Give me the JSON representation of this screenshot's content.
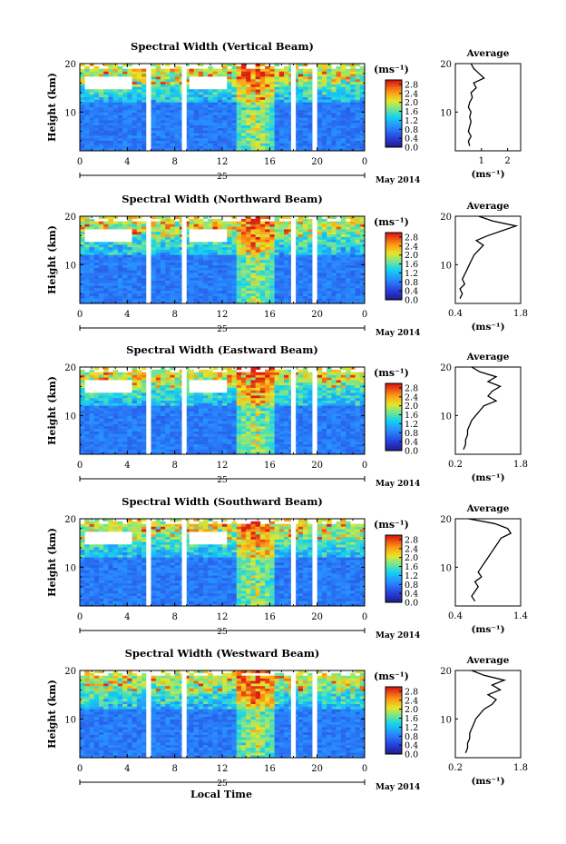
{
  "figure": {
    "x_axis_title": "Local Time",
    "date_label": "May 2014",
    "day_label": "25",
    "unit_label": "(ms⁻¹)",
    "avg_title": "Average",
    "height_label": "Height (km)"
  },
  "chart_data": [
    {
      "type": "heatmap",
      "title": "Spectral Width (Vertical Beam)",
      "xlabel": "Local Time",
      "ylabel": "Height (km)",
      "x_ticks": [
        "0",
        "4",
        "8",
        "12",
        "16",
        "20",
        "0"
      ],
      "y_ticks": [
        "10",
        "20"
      ],
      "xlim": [
        0,
        24
      ],
      "ylim": [
        2,
        20
      ],
      "colorbar": {
        "ticks": [
          "0.0",
          "0.4",
          "0.8",
          "1.2",
          "1.6",
          "2.0",
          "2.4",
          "2.8"
        ],
        "range": [
          0,
          3.0
        ]
      },
      "data_gaps_hours": [
        [
          5.6,
          6.0
        ],
        [
          8.6,
          9.0
        ],
        [
          17.8,
          18.2
        ],
        [
          19.6,
          20.0
        ]
      ],
      "profile": {
        "title": "Average",
        "xlabel": "(ms⁻¹)",
        "x_ticks": [
          "1",
          "2"
        ],
        "y_ticks": [
          "10",
          "20"
        ],
        "xlim": [
          0,
          2.5
        ],
        "heights": [
          3,
          4,
          5,
          6,
          7,
          8,
          9,
          10,
          11,
          12,
          13,
          14,
          15,
          16,
          17,
          18,
          19,
          20
        ],
        "values": [
          0.55,
          0.5,
          0.6,
          0.5,
          0.55,
          0.6,
          0.55,
          0.6,
          0.5,
          0.55,
          0.65,
          0.6,
          0.8,
          0.7,
          1.1,
          0.9,
          0.7,
          0.6
        ]
      }
    },
    {
      "type": "heatmap",
      "title": "Spectral Width (Northward Beam)",
      "xlabel": "Local Time",
      "ylabel": "Height (km)",
      "x_ticks": [
        "0",
        "4",
        "8",
        "12",
        "16",
        "20",
        "0"
      ],
      "y_ticks": [
        "10",
        "20"
      ],
      "xlim": [
        0,
        24
      ],
      "ylim": [
        2,
        20
      ],
      "colorbar": {
        "ticks": [
          "0.0",
          "0.4",
          "0.8",
          "1.2",
          "1.6",
          "2.0",
          "2.4",
          "2.8"
        ],
        "range": [
          0,
          3.0
        ]
      },
      "data_gaps_hours": [
        [
          5.6,
          6.0
        ],
        [
          8.6,
          9.0
        ],
        [
          17.8,
          18.2
        ],
        [
          19.6,
          20.0
        ]
      ],
      "profile": {
        "title": "Average",
        "xlabel": "(ms⁻¹)",
        "x_ticks": [
          "0.4",
          "1.8"
        ],
        "y_ticks": [
          "10",
          "20"
        ],
        "xlim": [
          0.4,
          1.8
        ],
        "heights": [
          3,
          4,
          5,
          6,
          7,
          8,
          9,
          10,
          11,
          12,
          13,
          14,
          15,
          16,
          17,
          18,
          19,
          20
        ],
        "values": [
          0.5,
          0.55,
          0.5,
          0.6,
          0.55,
          0.6,
          0.65,
          0.7,
          0.75,
          0.8,
          0.9,
          1.0,
          0.85,
          1.1,
          1.4,
          1.7,
          1.2,
          0.9
        ]
      }
    },
    {
      "type": "heatmap",
      "title": "Spectral Width (Eastward Beam)",
      "xlabel": "Local Time",
      "ylabel": "Height (km)",
      "x_ticks": [
        "0",
        "4",
        "8",
        "12",
        "16",
        "20",
        "0"
      ],
      "y_ticks": [
        "10",
        "20"
      ],
      "xlim": [
        0,
        24
      ],
      "ylim": [
        2,
        20
      ],
      "colorbar": {
        "ticks": [
          "0.0",
          "0.4",
          "0.8",
          "1.2",
          "1.6",
          "2.0",
          "2.4",
          "2.8"
        ],
        "range": [
          0,
          3.0
        ]
      },
      "data_gaps_hours": [
        [
          5.6,
          6.0
        ],
        [
          8.6,
          9.0
        ],
        [
          17.8,
          18.2
        ],
        [
          19.6,
          20.0
        ]
      ],
      "profile": {
        "title": "Average",
        "xlabel": "(ms⁻¹)",
        "x_ticks": [
          "0.2",
          "1.8"
        ],
        "y_ticks": [
          "10",
          "20"
        ],
        "xlim": [
          0.2,
          1.8
        ],
        "heights": [
          3,
          4,
          5,
          6,
          7,
          8,
          9,
          10,
          11,
          12,
          13,
          14,
          15,
          16,
          17,
          18,
          19,
          20
        ],
        "values": [
          0.4,
          0.45,
          0.45,
          0.5,
          0.5,
          0.55,
          0.6,
          0.7,
          0.8,
          0.9,
          1.2,
          1.0,
          1.1,
          1.3,
          1.0,
          1.2,
          0.8,
          0.6
        ]
      }
    },
    {
      "type": "heatmap",
      "title": "Spectral Width (Southward Beam)",
      "xlabel": "Local Time",
      "ylabel": "Height (km)",
      "x_ticks": [
        "0",
        "4",
        "8",
        "12",
        "16",
        "20",
        "0"
      ],
      "y_ticks": [
        "10",
        "20"
      ],
      "xlim": [
        0,
        24
      ],
      "ylim": [
        2,
        20
      ],
      "colorbar": {
        "ticks": [
          "0.0",
          "0.4",
          "0.8",
          "1.2",
          "1.6",
          "2.0",
          "2.4",
          "2.8"
        ],
        "range": [
          0,
          3.0
        ]
      },
      "data_gaps_hours": [
        [
          5.6,
          6.0
        ],
        [
          8.6,
          9.0
        ],
        [
          17.8,
          18.2
        ],
        [
          19.6,
          20.0
        ]
      ],
      "profile": {
        "title": "Average",
        "xlabel": "(ms⁻¹)",
        "x_ticks": [
          "0.4",
          "1.4"
        ],
        "y_ticks": [
          "10",
          "20"
        ],
        "xlim": [
          0.4,
          1.4
        ],
        "heights": [
          3,
          4,
          5,
          6,
          7,
          8,
          9,
          10,
          11,
          12,
          13,
          14,
          15,
          16,
          17,
          18,
          19,
          20
        ],
        "values": [
          0.7,
          0.65,
          0.7,
          0.75,
          0.7,
          0.8,
          0.75,
          0.8,
          0.85,
          0.9,
          0.95,
          1.0,
          1.05,
          1.1,
          1.25,
          1.2,
          1.0,
          0.6
        ]
      }
    },
    {
      "type": "heatmap",
      "title": "Spectral Width (Westward Beam)",
      "xlabel": "Local Time",
      "ylabel": "Height (km)",
      "x_ticks": [
        "0",
        "4",
        "8",
        "12",
        "16",
        "20",
        "0"
      ],
      "y_ticks": [
        "10",
        "20"
      ],
      "xlim": [
        0,
        24
      ],
      "ylim": [
        2,
        20
      ],
      "colorbar": {
        "ticks": [
          "0.0",
          "0.4",
          "0.8",
          "1.2",
          "1.6",
          "2.0",
          "2.4",
          "2.8"
        ],
        "range": [
          0,
          3.0
        ]
      },
      "data_gaps_hours": [
        [
          5.6,
          6.0
        ],
        [
          8.6,
          9.0
        ],
        [
          17.8,
          18.2
        ],
        [
          19.6,
          20.0
        ]
      ],
      "profile": {
        "title": "Average",
        "xlabel": "(ms⁻¹)",
        "x_ticks": [
          "0.2",
          "1.8"
        ],
        "y_ticks": [
          "10",
          "20"
        ],
        "xlim": [
          0.2,
          1.8
        ],
        "heights": [
          3,
          4,
          5,
          6,
          7,
          8,
          9,
          10,
          11,
          12,
          13,
          14,
          15,
          16,
          17,
          18,
          19,
          20
        ],
        "values": [
          0.45,
          0.5,
          0.5,
          0.55,
          0.55,
          0.6,
          0.65,
          0.7,
          0.8,
          0.9,
          1.1,
          1.2,
          1.0,
          1.3,
          1.1,
          1.4,
          0.9,
          0.6
        ]
      }
    }
  ]
}
